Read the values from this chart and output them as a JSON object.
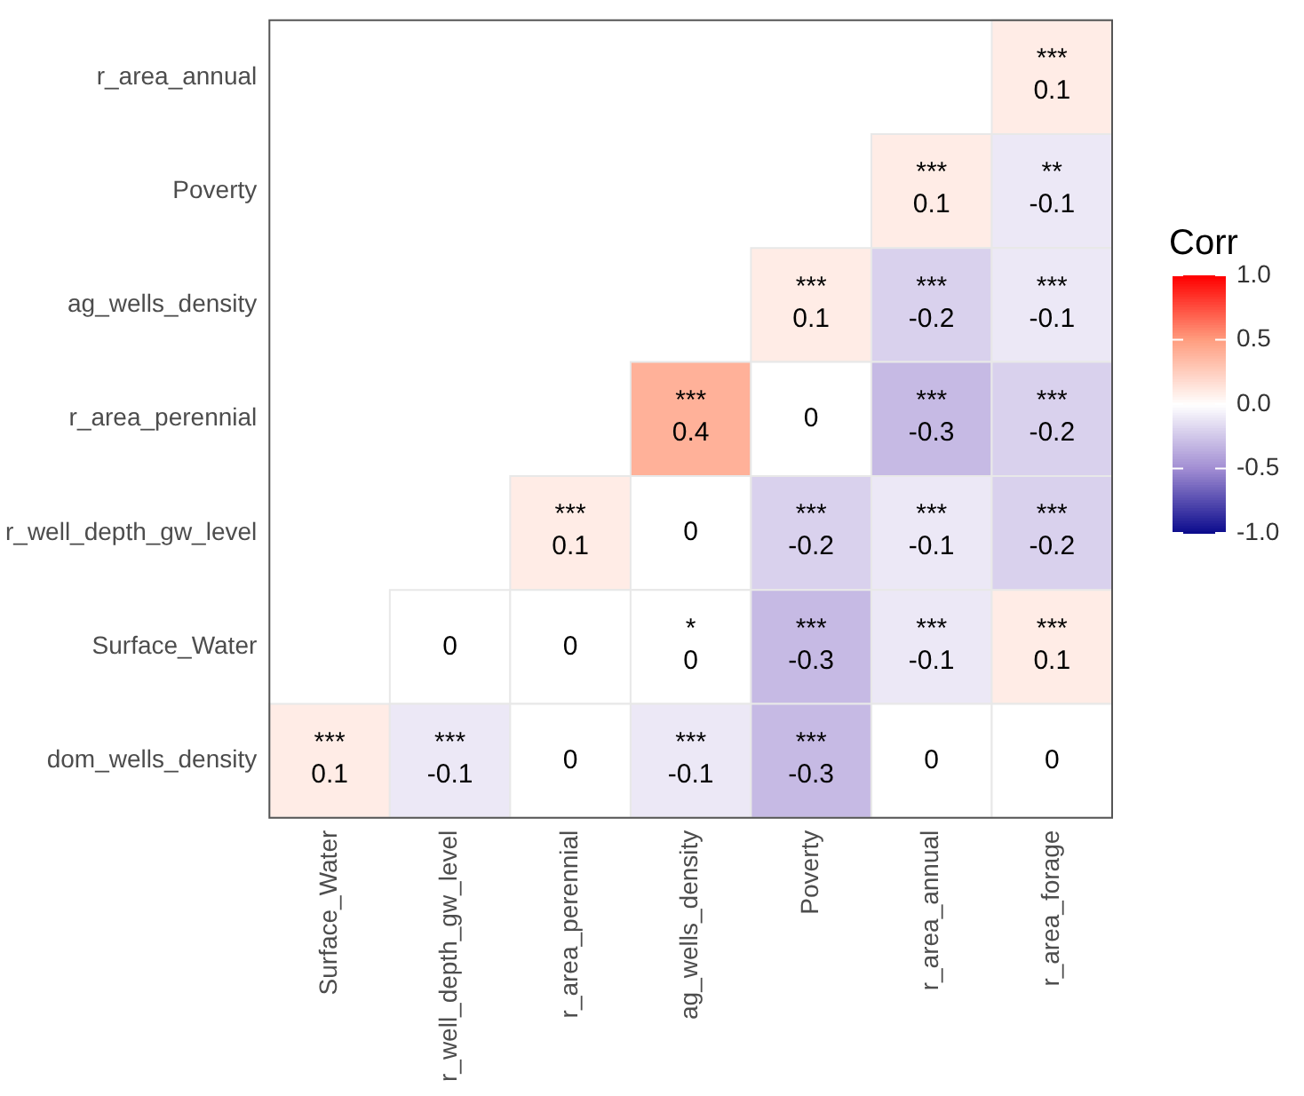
{
  "chart_data": {
    "type": "heatmap",
    "categories": [
      "Surface_Water",
      "r_well_depth_gw_level",
      "r_area_perennial",
      "ag_wells_density",
      "Poverty",
      "r_area_annual",
      "r_area_forage"
    ],
    "y_categories": [
      "r_area_annual",
      "Poverty",
      "ag_wells_density",
      "r_area_perennial",
      "r_well_depth_gw_level",
      "Surface_Water",
      "dom_wells_density"
    ],
    "cells": [
      [
        null,
        null,
        null,
        null,
        null,
        null,
        0.1
      ],
      [
        null,
        null,
        null,
        null,
        null,
        0.1,
        -0.1
      ],
      [
        null,
        null,
        null,
        null,
        0.1,
        -0.2,
        -0.1
      ],
      [
        null,
        null,
        null,
        0.4,
        0,
        -0.3,
        -0.2
      ],
      [
        null,
        null,
        0.1,
        0,
        -0.2,
        -0.1,
        -0.2
      ],
      [
        null,
        0,
        0,
        0,
        -0.3,
        -0.1,
        0.1
      ],
      [
        0.1,
        -0.1,
        0,
        -0.1,
        -0.3,
        0,
        0
      ]
    ],
    "cell_labels": [
      [
        null,
        null,
        null,
        null,
        null,
        null,
        "***\n0.1"
      ],
      [
        null,
        null,
        null,
        null,
        null,
        "***\n0.1",
        "**\n-0.1"
      ],
      [
        null,
        null,
        null,
        null,
        "***\n0.1",
        "***\n-0.2",
        "***\n-0.1"
      ],
      [
        null,
        null,
        null,
        "***\n0.4",
        "0",
        "***\n-0.3",
        "***\n-0.2"
      ],
      [
        null,
        null,
        "***\n0.1",
        "0",
        "***\n-0.2",
        "***\n-0.1",
        "***\n-0.2"
      ],
      [
        null,
        "0",
        "0",
        "*\n0",
        "***\n-0.3",
        "***\n-0.1",
        "***\n0.1"
      ],
      [
        "***\n0.1",
        "***\n-0.1",
        "0",
        "***\n-0.1",
        "***\n-0.3",
        "0",
        "0"
      ]
    ],
    "clabel": "Corr",
    "clim": [
      -1,
      1
    ],
    "cticks": [
      {
        "value": 1,
        "label": "1.0"
      },
      {
        "value": 0.5,
        "label": "0.5"
      },
      {
        "value": 0,
        "label": "0.0"
      },
      {
        "value": -0.5,
        "label": "-0.5"
      },
      {
        "value": -1,
        "label": "-1.0"
      }
    ]
  }
}
